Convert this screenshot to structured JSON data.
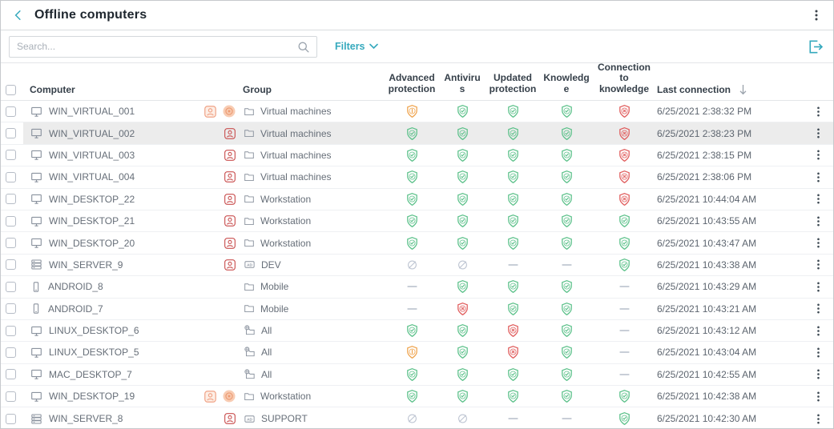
{
  "header": {
    "title": "Offline computers",
    "back_icon": "chevron-left-icon",
    "menu_icon": "kebab-menu-icon"
  },
  "toolbar": {
    "search_placeholder": "Search...",
    "search_icon": "search-icon",
    "filters_label": "Filters",
    "filters_chevron_icon": "chevron-down-icon",
    "export_icon": "export-icon"
  },
  "colors": {
    "accent_teal": "#35a9bd",
    "status_ok_green": "#5cc18a",
    "status_warn_orange": "#efa44e",
    "status_error_red": "#e05c5c",
    "status_disabled_gray": "#bec5d2",
    "badge_red": "#c94f4f",
    "badge_orange": "#f0a387",
    "row_highlight": "#ececec"
  },
  "table": {
    "columns": [
      "Computer",
      "Group",
      "Advanced protection",
      "Antivirus",
      "Updated protection",
      "Knowledge",
      "Connection to knowledge",
      "Last connection"
    ],
    "sort": {
      "column": "Last connection",
      "direction": "desc",
      "icon": "sort-arrow-down-icon"
    },
    "rows": [
      {
        "name": "WIN_VIRTUAL_001",
        "device_icon": "desktop",
        "badges": [
          "user-orange",
          "excluded-orange"
        ],
        "group_icon": "folder",
        "group": "Virtual machines",
        "statuses": {
          "advanced_protection": "warn",
          "antivirus": "ok",
          "updated_protection": "ok",
          "knowledge": "ok",
          "connection_to_knowledge": "error"
        },
        "last_connection": "6/25/2021 2:38:32 PM"
      },
      {
        "name": "WIN_VIRTUAL_002",
        "device_icon": "desktop",
        "badges": [
          "user-red"
        ],
        "group_icon": "folder",
        "group": "Virtual machines",
        "highlighted": true,
        "statuses": {
          "advanced_protection": "ok",
          "antivirus": "ok",
          "updated_protection": "ok",
          "knowledge": "ok",
          "connection_to_knowledge": "error"
        },
        "last_connection": "6/25/2021 2:38:23 PM"
      },
      {
        "name": "WIN_VIRTUAL_003",
        "device_icon": "desktop",
        "badges": [
          "user-red"
        ],
        "group_icon": "folder",
        "group": "Virtual machines",
        "statuses": {
          "advanced_protection": "ok",
          "antivirus": "ok",
          "updated_protection": "ok",
          "knowledge": "ok",
          "connection_to_knowledge": "error"
        },
        "last_connection": "6/25/2021 2:38:15 PM"
      },
      {
        "name": "WIN_VIRTUAL_004",
        "device_icon": "desktop",
        "badges": [
          "user-red"
        ],
        "group_icon": "folder",
        "group": "Virtual machines",
        "statuses": {
          "advanced_protection": "ok",
          "antivirus": "ok",
          "updated_protection": "ok",
          "knowledge": "ok",
          "connection_to_knowledge": "error"
        },
        "last_connection": "6/25/2021 2:38:06 PM"
      },
      {
        "name": "WIN_DESKTOP_22",
        "device_icon": "desktop",
        "badges": [
          "user-red"
        ],
        "group_icon": "folder",
        "group": "Workstation",
        "statuses": {
          "advanced_protection": "ok",
          "antivirus": "ok",
          "updated_protection": "ok",
          "knowledge": "ok",
          "connection_to_knowledge": "error"
        },
        "last_connection": "6/25/2021 10:44:04 AM"
      },
      {
        "name": "WIN_DESKTOP_21",
        "device_icon": "desktop",
        "badges": [
          "user-red"
        ],
        "group_icon": "folder",
        "group": "Workstation",
        "statuses": {
          "advanced_protection": "ok",
          "antivirus": "ok",
          "updated_protection": "ok",
          "knowledge": "ok",
          "connection_to_knowledge": "ok"
        },
        "last_connection": "6/25/2021 10:43:55 AM"
      },
      {
        "name": "WIN_DESKTOP_20",
        "device_icon": "desktop",
        "badges": [
          "user-red"
        ],
        "group_icon": "folder",
        "group": "Workstation",
        "statuses": {
          "advanced_protection": "ok",
          "antivirus": "ok",
          "updated_protection": "ok",
          "knowledge": "ok",
          "connection_to_knowledge": "ok"
        },
        "last_connection": "6/25/2021 10:43:47 AM"
      },
      {
        "name": "WIN_SERVER_9",
        "device_icon": "server",
        "badges": [
          "user-red"
        ],
        "group_icon": "ad",
        "group": "DEV",
        "statuses": {
          "advanced_protection": "disabled",
          "antivirus": "disabled",
          "updated_protection": "none",
          "knowledge": "none",
          "connection_to_knowledge": "ok"
        },
        "last_connection": "6/25/2021 10:43:38 AM"
      },
      {
        "name": "ANDROID_8",
        "device_icon": "mobile",
        "badges": [],
        "group_icon": "folder",
        "group": "Mobile",
        "statuses": {
          "advanced_protection": "none",
          "antivirus": "ok",
          "updated_protection": "ok",
          "knowledge": "ok",
          "connection_to_knowledge": "none"
        },
        "last_connection": "6/25/2021 10:43:29 AM"
      },
      {
        "name": "ANDROID_7",
        "device_icon": "mobile",
        "badges": [],
        "group_icon": "folder",
        "group": "Mobile",
        "statuses": {
          "advanced_protection": "none",
          "antivirus": "error",
          "updated_protection": "ok",
          "knowledge": "ok",
          "connection_to_knowledge": "none"
        },
        "last_connection": "6/25/2021 10:43:21 AM"
      },
      {
        "name": "LINUX_DESKTOP_6",
        "device_icon": "desktop",
        "badges": [],
        "group_icon": "all",
        "group": "All",
        "statuses": {
          "advanced_protection": "ok",
          "antivirus": "ok",
          "updated_protection": "error",
          "knowledge": "ok",
          "connection_to_knowledge": "none"
        },
        "last_connection": "6/25/2021 10:43:12 AM"
      },
      {
        "name": "LINUX_DESKTOP_5",
        "device_icon": "desktop",
        "badges": [],
        "group_icon": "all",
        "group": "All",
        "statuses": {
          "advanced_protection": "warn",
          "antivirus": "ok",
          "updated_protection": "error",
          "knowledge": "ok",
          "connection_to_knowledge": "none"
        },
        "last_connection": "6/25/2021 10:43:04 AM"
      },
      {
        "name": "MAC_DESKTOP_7",
        "device_icon": "desktop",
        "badges": [],
        "group_icon": "all",
        "group": "All",
        "statuses": {
          "advanced_protection": "ok",
          "antivirus": "ok",
          "updated_protection": "ok",
          "knowledge": "ok",
          "connection_to_knowledge": "none"
        },
        "last_connection": "6/25/2021 10:42:55 AM"
      },
      {
        "name": "WIN_DESKTOP_19",
        "device_icon": "desktop",
        "badges": [
          "user-orange",
          "excluded-orange"
        ],
        "group_icon": "folder",
        "group": "Workstation",
        "statuses": {
          "advanced_protection": "ok",
          "antivirus": "ok",
          "updated_protection": "ok",
          "knowledge": "ok",
          "connection_to_knowledge": "ok"
        },
        "last_connection": "6/25/2021 10:42:38 AM"
      },
      {
        "name": "WIN_SERVER_8",
        "device_icon": "server",
        "badges": [
          "user-red"
        ],
        "group_icon": "ad",
        "group": "SUPPORT",
        "statuses": {
          "advanced_protection": "disabled",
          "antivirus": "disabled",
          "updated_protection": "none",
          "knowledge": "none",
          "connection_to_knowledge": "ok"
        },
        "last_connection": "6/25/2021 10:42:30 AM"
      }
    ]
  }
}
